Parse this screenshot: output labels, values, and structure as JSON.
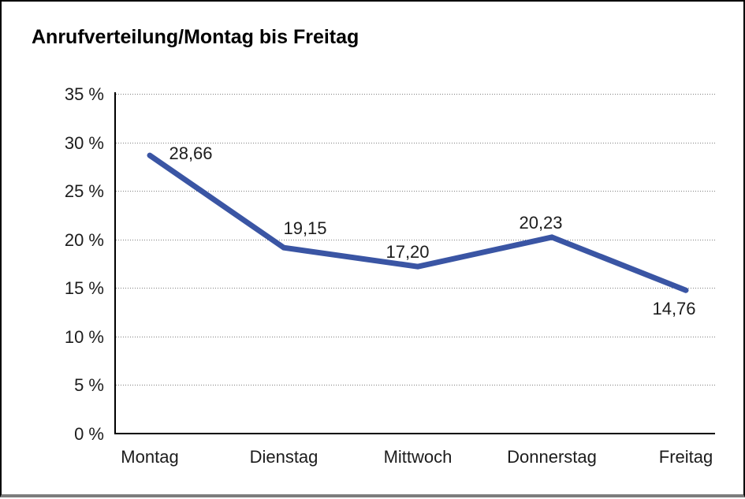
{
  "window": {
    "background": "#ffffff",
    "frame_border_color": "#000000",
    "frame_bottom_color": "#7d7d7d"
  },
  "chart_data": {
    "type": "line",
    "title": "Anrufverteilung/Montag bis Freitag",
    "categories": [
      "Montag",
      "Dienstag",
      "Mittwoch",
      "Donnerstag",
      "Freitag"
    ],
    "series": [
      {
        "name": "Anrufverteilung",
        "values": [
          28.66,
          19.15,
          17.2,
          20.23,
          14.76
        ],
        "value_labels": [
          "28,66",
          "19,15",
          "17,20",
          "20,23",
          "14,76"
        ]
      }
    ],
    "xlabel": "",
    "ylabel": "",
    "ylim": [
      0,
      35
    ],
    "ytick_step": 5,
    "yticks": [
      {
        "value": 35,
        "label": "35 %"
      },
      {
        "value": 30,
        "label": "30 %"
      },
      {
        "value": 25,
        "label": "25 %"
      },
      {
        "value": 20,
        "label": "20 %"
      },
      {
        "value": 15,
        "label": "15 %"
      },
      {
        "value": 10,
        "label": "10 %"
      },
      {
        "value": 5,
        "label": "5 %"
      },
      {
        "value": 0,
        "label": "0 %"
      }
    ],
    "grid": "horizontal dotted gridlines, on",
    "legend": "none",
    "line_color": "#3a55a4",
    "grid_color": "#7e7e7e",
    "axis_color": "#000000",
    "text_color": "#1c1c1c"
  }
}
